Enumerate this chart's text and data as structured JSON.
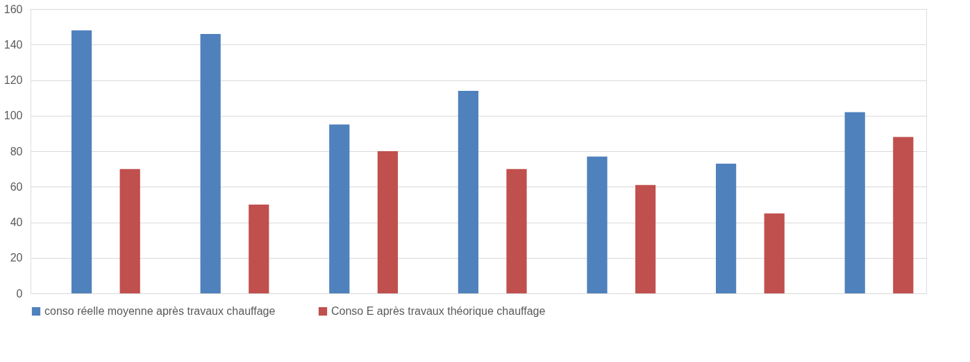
{
  "chart_data": {
    "type": "bar",
    "categories": [
      null,
      null,
      null,
      null,
      null,
      null,
      null
    ],
    "series": [
      {
        "name": "conso réelle moyenne après travaux chauffage",
        "color": "#4f81bd",
        "values": [
          148,
          146,
          95,
          114,
          77,
          73,
          102
        ]
      },
      {
        "name": "Conso E après travaux théorique chauffage",
        "color": "#c0504d",
        "values": [
          70,
          50,
          80,
          70,
          61,
          45,
          88
        ]
      }
    ],
    "ylim": [
      0,
      160
    ],
    "yticks": [
      0,
      20,
      40,
      60,
      80,
      100,
      120,
      140,
      160
    ],
    "grid": "y",
    "legend": "bottom",
    "tick_labels": "y"
  }
}
